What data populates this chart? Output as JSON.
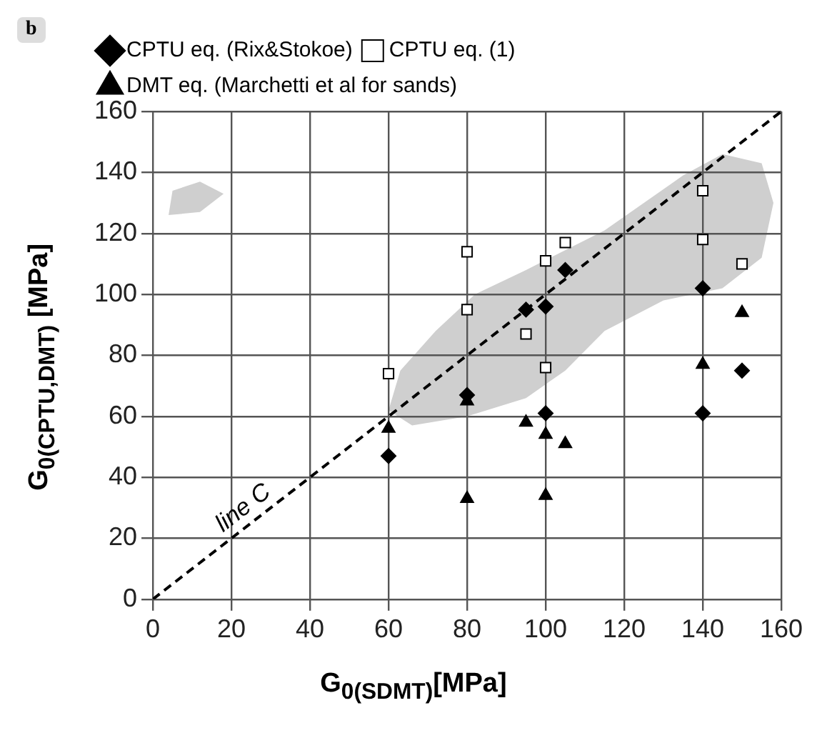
{
  "chart_data": {
    "type": "scatter",
    "title": "b",
    "xlabel": "G$_{0(SDMT)}$[MPa]",
    "ylabel": "G$_{0(CPTU,DMT)}$ [MPa]",
    "xlim": [
      0,
      160
    ],
    "ylim": [
      0,
      160
    ],
    "xticks": [
      0,
      20,
      40,
      60,
      80,
      100,
      120,
      140,
      160
    ],
    "yticks": [
      0,
      20,
      40,
      60,
      80,
      100,
      120,
      140,
      160
    ],
    "grid": true,
    "legend": "top left",
    "series": [
      {
        "name": "CPTU eq. (Rix&Stokoe)",
        "color": "#000000",
        "marker": "diamond",
        "x": [
          60,
          80,
          95,
          100,
          100,
          105,
          140,
          140,
          150
        ],
        "values": [
          47,
          67,
          95,
          96,
          61,
          108,
          102,
          61,
          75
        ]
      },
      {
        "name": "CPTU eq. (1)",
        "color": "#000000",
        "marker": "square",
        "x": [
          60,
          80,
          80,
          95,
          100,
          100,
          105,
          140,
          140,
          150
        ],
        "values": [
          74,
          114,
          95,
          87,
          111,
          76,
          117,
          134,
          118,
          110
        ]
      },
      {
        "name": "DMT eq. (Marchetti et al for sands)",
        "color": "#000000",
        "marker": "triangle",
        "x": [
          60,
          80,
          80,
          95,
          100,
          100,
          105,
          140,
          150
        ],
        "values": [
          56,
          65,
          33,
          58,
          54,
          34,
          51,
          77,
          94
        ]
      },
      {
        "name": "line C",
        "type": "line",
        "color": "#000000",
        "line_style": "dashed",
        "marker": "none",
        "x": [
          0,
          160
        ],
        "values": [
          0,
          160
        ]
      }
    ]
  }
}
